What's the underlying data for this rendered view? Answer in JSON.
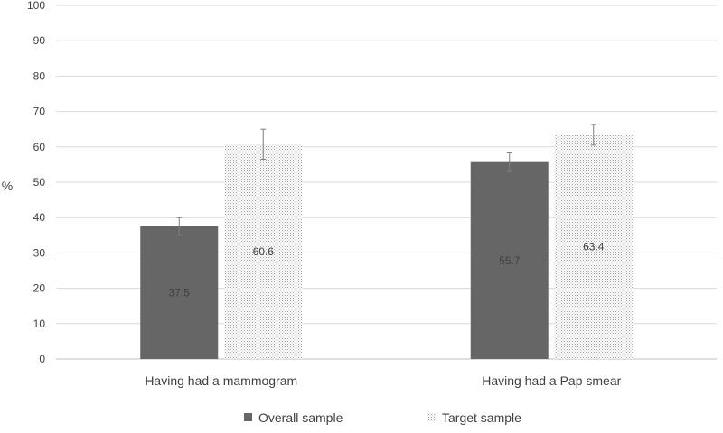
{
  "chart_data": {
    "type": "bar",
    "title": "",
    "xlabel": "",
    "ylabel": "%",
    "ylim": [
      0,
      100
    ],
    "yticks": [
      0,
      10,
      20,
      30,
      40,
      50,
      60,
      70,
      80,
      90,
      100
    ],
    "grid": true,
    "legend_position": "bottom",
    "categories": [
      "Having had a mammogram",
      "Having had a Pap smear"
    ],
    "series": [
      {
        "name": "Overall sample",
        "values": [
          37.5,
          55.7
        ],
        "labels": [
          "37.5",
          "55.7"
        ],
        "error_low": [
          35.0,
          53.0
        ],
        "error_high": [
          40.0,
          58.3
        ],
        "fill": "solid",
        "color": "#666666"
      },
      {
        "name": "Target sample",
        "values": [
          60.6,
          63.4
        ],
        "labels": [
          "60.6",
          "63.4"
        ],
        "error_low": [
          56.5,
          60.5
        ],
        "error_high": [
          65.0,
          66.3
        ],
        "fill": "dotted",
        "color": "#9e9e9e"
      }
    ]
  }
}
